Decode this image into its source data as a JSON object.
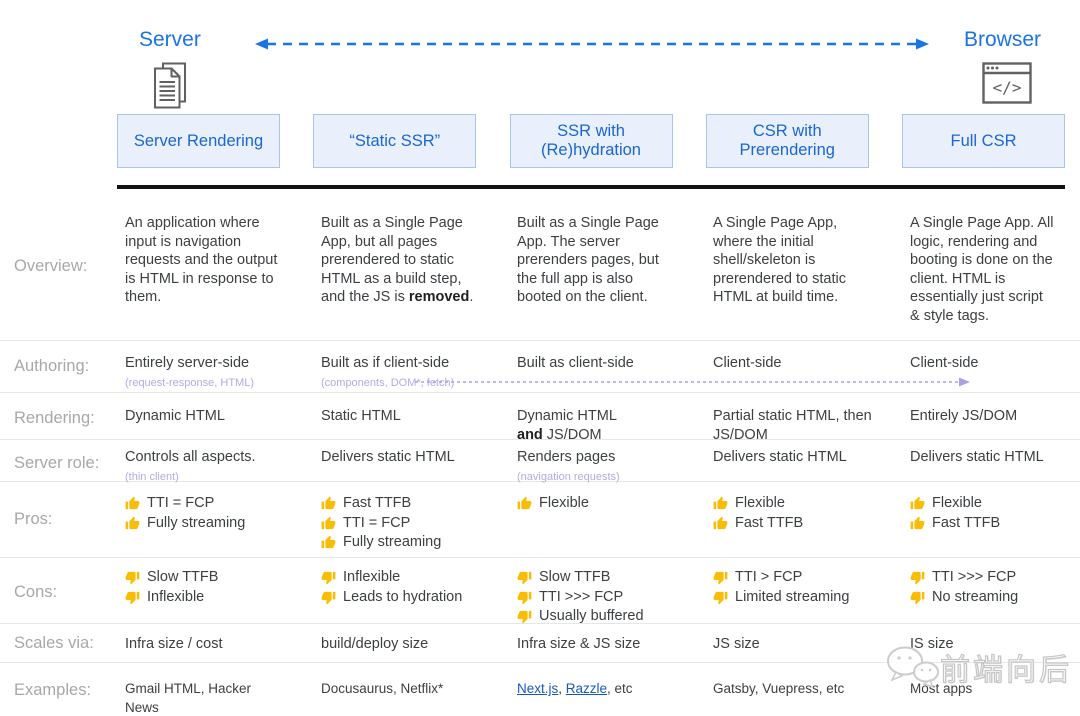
{
  "header": {
    "server_label": "Server",
    "browser_label": "Browser"
  },
  "columns": [
    {
      "label": "Server Rendering"
    },
    {
      "label": "“Static SSR”"
    },
    {
      "label": "SSR with (Re)hydration"
    },
    {
      "label": "CSR with Prerendering"
    },
    {
      "label": "Full CSR"
    }
  ],
  "table": {
    "rows": [
      {
        "id": "overview",
        "label": "Overview:",
        "cells": [
          {
            "segments": [
              {
                "t": "An application where input is navigation requests and the output is HTML in response to them."
              }
            ]
          },
          {
            "segments": [
              {
                "t": "Built as a Single Page App, but all pages prerendered to static HTML as a build step, and the JS is "
              },
              {
                "t": "removed",
                "b": true
              },
              {
                "t": "."
              }
            ]
          },
          {
            "segments": [
              {
                "t": "Built as a Single Page App. The server prerenders pages, but the full app is also booted on the client."
              }
            ]
          },
          {
            "segments": [
              {
                "t": "A Single Page App, where the initial shell/skeleton is prerendered to static HTML at build time."
              }
            ]
          },
          {
            "segments": [
              {
                "t": "A Single Page App. All logic, rendering and booting is done on the client. HTML is essentially just script & style tags."
              }
            ]
          }
        ]
      },
      {
        "id": "authoring",
        "label": "Authoring:",
        "cells": [
          {
            "segments": [
              {
                "t": "Entirely server-side"
              }
            ],
            "sub": "(request-response, HTML)"
          },
          {
            "segments": [
              {
                "t": "Built as if client-side"
              }
            ],
            "sub": "(components, DOM*, fetch)"
          },
          {
            "segments": [
              {
                "t": "Built as client-side"
              }
            ]
          },
          {
            "segments": [
              {
                "t": "Client-side"
              }
            ]
          },
          {
            "segments": [
              {
                "t": "Client-side"
              }
            ]
          }
        ]
      },
      {
        "id": "rendering",
        "label": "Rendering:",
        "cells": [
          {
            "segments": [
              {
                "t": "Dynamic HTML"
              }
            ]
          },
          {
            "segments": [
              {
                "t": "Static HTML"
              }
            ]
          },
          {
            "segments": [
              {
                "t": "Dynamic HTML"
              },
              {
                "br": true
              },
              {
                "t": "and",
                "b": true
              },
              {
                "t": " JS/DOM"
              }
            ]
          },
          {
            "segments": [
              {
                "t": "Partial static HTML, then JS/DOM"
              }
            ]
          },
          {
            "segments": [
              {
                "t": "Entirely JS/DOM"
              }
            ]
          }
        ]
      },
      {
        "id": "server-role",
        "label": "Server role:",
        "cells": [
          {
            "segments": [
              {
                "t": "Controls all aspects."
              }
            ],
            "sub": "(thin client)"
          },
          {
            "segments": [
              {
                "t": "Delivers static HTML"
              }
            ]
          },
          {
            "segments": [
              {
                "t": "Renders pages"
              }
            ],
            "sub": "(navigation requests)"
          },
          {
            "segments": [
              {
                "t": "Delivers static HTML"
              }
            ]
          },
          {
            "segments": [
              {
                "t": "Delivers static HTML"
              }
            ]
          }
        ]
      },
      {
        "id": "pros",
        "label": "Pros:",
        "icon": "thumb-up-icon",
        "cells": [
          {
            "items": [
              "TTI = FCP",
              "Fully streaming"
            ]
          },
          {
            "items": [
              "Fast TTFB",
              "TTI = FCP",
              "Fully streaming"
            ]
          },
          {
            "items": [
              "Flexible"
            ]
          },
          {
            "items": [
              "Flexible",
              "Fast TTFB"
            ]
          },
          {
            "items": [
              "Flexible",
              "Fast TTFB"
            ]
          }
        ]
      },
      {
        "id": "cons",
        "label": "Cons:",
        "icon": "thumb-down-icon",
        "cells": [
          {
            "items": [
              "Slow TTFB",
              "Inflexible"
            ]
          },
          {
            "items": [
              "Inflexible",
              "Leads to hydration"
            ]
          },
          {
            "items": [
              "Slow TTFB",
              "TTI >>> FCP",
              "Usually buffered"
            ]
          },
          {
            "items": [
              "TTI > FCP",
              "Limited streaming"
            ]
          },
          {
            "items": [
              "TTI >>> FCP",
              "No streaming"
            ]
          }
        ]
      },
      {
        "id": "scales-via",
        "label": "Scales via:",
        "cells": [
          {
            "segments": [
              {
                "t": "Infra size / cost"
              }
            ]
          },
          {
            "segments": [
              {
                "t": "build/deploy size"
              }
            ]
          },
          {
            "segments": [
              {
                "t": "Infra size & JS size"
              }
            ]
          },
          {
            "segments": [
              {
                "t": "JS size"
              }
            ]
          },
          {
            "segments": [
              {
                "t": "IS size"
              }
            ]
          }
        ]
      },
      {
        "id": "examples",
        "label": "Examples:",
        "cells": [
          {
            "segments": [
              {
                "t": "Gmail HTML, Hacker News"
              }
            ]
          },
          {
            "segments": [
              {
                "t": "Docusaurus, Netflix*"
              }
            ]
          },
          {
            "segments": [
              {
                "t": "Next.js",
                "link": true
              },
              {
                "t": ", "
              },
              {
                "t": "Razzle",
                "link": true
              },
              {
                "t": ", etc"
              }
            ]
          },
          {
            "segments": [
              {
                "t": "Gatsby, Vuepress, etc"
              }
            ]
          },
          {
            "segments": [
              {
                "t": "Most apps"
              }
            ]
          }
        ]
      }
    ]
  },
  "watermark": {
    "text": "前端向后"
  },
  "colors": {
    "accent_blue": "#1a73e8",
    "box_text_blue": "#1967d2",
    "box_bg": "#e9effb",
    "box_border": "#a9c4ee",
    "purple_annotation": "#b2abe4",
    "thumb_yellow": "#fbbc04",
    "link_blue": "#1659c4"
  }
}
